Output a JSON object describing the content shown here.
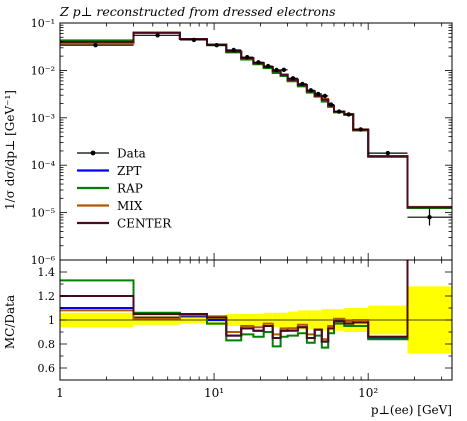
{
  "chart_data": [
    {
      "type": "line",
      "title": "Z p⊥ reconstructed from dressed electrons",
      "ylabel": "1/σ dσ/dp⊥ [GeV⁻¹]",
      "xlabel": "",
      "x_scale": "log",
      "y_scale": "log",
      "xlim": [
        1,
        350
      ],
      "ylim": [
        1e-06,
        0.1
      ],
      "bin_edges": [
        1,
        3,
        6,
        9,
        12,
        15,
        18,
        21,
        24,
        27,
        30,
        35,
        40,
        45,
        50,
        55,
        60,
        70,
        80,
        100,
        180,
        350
      ],
      "y_tick_labels": [
        "10⁻⁶",
        "10⁻⁵",
        "10⁻⁴",
        "10⁻³",
        "10⁻²",
        "10⁻¹"
      ],
      "x_tick_labels": [
        "1",
        "10¹",
        "10²"
      ],
      "legend_placement": "bottom-left",
      "series": [
        {
          "name": "Data",
          "color": "#000000",
          "points": [
            [
              1.7,
              0.034
            ],
            [
              4.3,
              0.055
            ],
            [
              7.4,
              0.044
            ],
            [
              10.4,
              0.034
            ],
            [
              13.4,
              0.027
            ],
            [
              16.4,
              0.019
            ],
            [
              19.4,
              0.0148
            ],
            [
              22.4,
              0.0123
            ],
            [
              25.4,
              0.0102
            ],
            [
              28.4,
              0.0103
            ],
            [
              32.5,
              0.0068
            ],
            [
              37.4,
              0.0052
            ],
            [
              42.4,
              0.0038
            ],
            [
              47.4,
              0.0032
            ],
            [
              52.4,
              0.0029
            ],
            [
              57.4,
              0.0019
            ],
            [
              64.8,
              0.00135
            ],
            [
              74.8,
              0.00118
            ],
            [
              89.4,
              0.00057
            ],
            [
              134,
              0.00018
            ],
            [
              250,
              8e-06
            ]
          ]
        },
        {
          "name": "ZPT",
          "color": "#0000ff",
          "values": [
            0.038,
            0.062,
            0.046,
            0.035,
            0.025,
            0.018,
            0.0142,
            0.0118,
            0.0096,
            0.0081,
            0.0063,
            0.0049,
            0.0036,
            0.0029,
            0.0024,
            0.0018,
            0.00135,
            0.00118,
            0.00056,
            0.000154,
            1.3e-05
          ]
        },
        {
          "name": "RAP",
          "color": "#008000",
          "values": [
            0.043,
            0.063,
            0.046,
            0.034,
            0.024,
            0.017,
            0.0135,
            0.0112,
            0.0088,
            0.0076,
            0.0059,
            0.0046,
            0.0034,
            0.0028,
            0.0022,
            0.0017,
            0.0013,
            0.00115,
            0.00054,
            0.00015,
            1.25e-05
          ]
        },
        {
          "name": "MIX",
          "color": "#b35900",
          "values": [
            0.037,
            0.062,
            0.046,
            0.035,
            0.025,
            0.018,
            0.0142,
            0.0118,
            0.0097,
            0.0082,
            0.0063,
            0.0049,
            0.0036,
            0.0029,
            0.0025,
            0.0018,
            0.00135,
            0.0012,
            0.00057,
            0.000155,
            1.32e-05
          ]
        },
        {
          "name": "CENTER",
          "color": "#4b0a1e",
          "values": [
            0.04,
            0.062,
            0.046,
            0.035,
            0.025,
            0.018,
            0.0142,
            0.0118,
            0.0096,
            0.0081,
            0.0063,
            0.0049,
            0.0036,
            0.0029,
            0.0024,
            0.0018,
            0.00135,
            0.00118,
            0.00056,
            0.000154,
            1.3e-05
          ]
        }
      ]
    },
    {
      "type": "line",
      "title": "",
      "ylabel": "MC/Data",
      "xlabel": "p⊥(ee) [GeV]",
      "x_scale": "log",
      "xlim": [
        1,
        350
      ],
      "ylim": [
        0.5,
        1.5
      ],
      "y_tick_labels": [
        "0.6",
        "0.8",
        "1",
        "1.2",
        "1.4"
      ],
      "x_tick_labels": [
        "1",
        "10¹",
        "10²"
      ],
      "reference_line": 1,
      "band_color": "#ffff00",
      "band": {
        "lo": [
          0.94,
          0.96,
          0.97,
          0.96,
          0.95,
          0.95,
          0.95,
          0.94,
          0.94,
          0.94,
          0.93,
          0.92,
          0.92,
          0.92,
          0.91,
          0.91,
          0.91,
          0.9,
          0.9,
          0.88,
          0.72
        ],
        "hi": [
          1.06,
          1.04,
          1.03,
          1.04,
          1.05,
          1.05,
          1.05,
          1.06,
          1.06,
          1.06,
          1.07,
          1.08,
          1.08,
          1.08,
          1.09,
          1.09,
          1.09,
          1.1,
          1.1,
          1.12,
          1.28
        ]
      },
      "series": [
        {
          "name": "ZPT",
          "color": "#0000ff",
          "values": [
            1.1,
            1.02,
            1.03,
            1.0,
            0.87,
            0.93,
            0.91,
            0.95,
            0.85,
            0.91,
            0.93,
            0.94,
            0.85,
            0.92,
            0.82,
            0.93,
            0.99,
            0.97,
            0.98,
            0.85,
            1.6
          ]
        },
        {
          "name": "RAP",
          "color": "#008000",
          "values": [
            1.33,
            1.06,
            1.04,
            0.97,
            0.83,
            0.88,
            0.86,
            0.9,
            0.78,
            0.86,
            0.87,
            0.89,
            0.81,
            0.87,
            0.77,
            0.89,
            0.97,
            0.95,
            0.95,
            0.84,
            1.6
          ]
        },
        {
          "name": "MIX",
          "color": "#b35900",
          "values": [
            1.08,
            1.01,
            1.04,
            1.03,
            0.9,
            0.95,
            0.94,
            0.97,
            0.88,
            0.93,
            0.93,
            0.96,
            0.88,
            0.92,
            0.84,
            0.95,
            1.01,
            0.99,
            1.0,
            0.86,
            1.6
          ]
        },
        {
          "name": "CENTER",
          "color": "#4b0a1e",
          "values": [
            1.2,
            1.05,
            1.05,
            1.02,
            0.87,
            0.93,
            0.91,
            0.95,
            0.85,
            0.91,
            0.91,
            0.94,
            0.85,
            0.92,
            0.82,
            0.93,
            0.99,
            0.97,
            0.98,
            0.86,
            1.6
          ]
        }
      ]
    }
  ]
}
